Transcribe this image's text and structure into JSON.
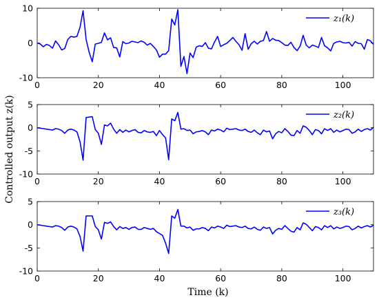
{
  "chart_data": [
    {
      "type": "line",
      "legend": "z₁(k)",
      "legend_placement": "top-right",
      "xlim": [
        0,
        110
      ],
      "ylim": [
        -10,
        10
      ],
      "xticks": [
        0,
        20,
        40,
        60,
        80,
        100
      ],
      "yticks": [
        -10,
        0,
        10
      ],
      "grid": false,
      "color": "#0000ff",
      "series": [
        {
          "x": [
            0,
            1,
            2,
            3,
            4,
            5,
            6,
            7,
            8,
            9,
            10,
            11,
            12,
            13,
            14,
            15,
            16,
            17,
            18,
            19,
            20,
            21,
            22,
            23,
            24,
            25,
            26,
            27,
            28,
            29,
            30,
            31,
            32,
            33,
            34,
            35,
            36,
            37,
            38,
            39,
            40,
            41,
            42,
            43,
            44,
            45,
            46,
            47,
            48,
            49,
            50,
            51,
            52,
            53,
            54,
            55,
            56,
            57,
            58,
            59,
            60,
            61,
            62,
            63,
            64,
            65,
            66,
            67,
            68,
            69,
            70,
            71,
            72,
            73,
            74,
            75,
            76,
            77,
            78,
            79,
            80,
            81,
            82,
            83,
            84,
            85,
            86,
            87,
            88,
            89,
            90,
            91,
            92,
            93,
            94,
            95,
            96,
            97,
            98,
            99,
            100,
            101,
            102,
            103,
            104,
            105,
            106,
            107,
            108,
            109,
            110
          ],
          "values": [
            0,
            -0.3,
            -1.1,
            -0.4,
            -0.7,
            -1.5,
            0.6,
            -0.5,
            -2,
            -1.6,
            1,
            1.9,
            1.7,
            1.9,
            4.5,
            9.3,
            1,
            -2.7,
            -5.4,
            -0.3,
            -0.1,
            0.2,
            2.9,
            0.9,
            1.5,
            -1.3,
            -1.4,
            -4,
            0.4,
            -0.2,
            0,
            0.5,
            0.3,
            0.1,
            0.6,
            0.2,
            -0.6,
            -0.1,
            -1,
            -2,
            -4.1,
            -3.2,
            -3.2,
            -2.2,
            6.9,
            5.2,
            9.6,
            -6.7,
            -3.9,
            -8.8,
            -2.9,
            -4.2,
            -1.2,
            -0.8,
            -1,
            0.1,
            -1.5,
            -1.7,
            0.3,
            1.9,
            -1,
            -0.5,
            -0.1,
            0.7,
            1.6,
            0.5,
            -0.5,
            -2.1,
            2.7,
            -1.8,
            -0.2,
            0.5,
            -0.3,
            0.5,
            0.7,
            3.3,
            0.5,
            1.3,
            0.8,
            0.7,
            0.1,
            -0.6,
            -0.7,
            0.2,
            -1.3,
            -2.2,
            -0.9,
            2.2,
            -0.6,
            -1.4,
            -0.6,
            -0.9,
            -1.3,
            1.6,
            -0.8,
            -1.4,
            -2.3,
            -0.1,
            0.3,
            0.5,
            0.1,
            0,
            0.2,
            -0.9,
            0.4,
            -0.1,
            -0.2,
            -1.8,
            1,
            0.6,
            -0.4
          ]
        }
      ]
    },
    {
      "type": "line",
      "legend": "z₂(k)",
      "legend_placement": "top-right",
      "xlim": [
        0,
        110
      ],
      "ylim": [
        -10,
        5
      ],
      "xticks": [
        0,
        20,
        40,
        60,
        80,
        100
      ],
      "yticks": [
        -10,
        -5,
        0,
        5
      ],
      "grid": false,
      "color": "#0000ff",
      "series": [
        {
          "x": [
            0,
            1,
            2,
            3,
            4,
            5,
            6,
            7,
            8,
            9,
            10,
            11,
            12,
            13,
            14,
            15,
            16,
            17,
            18,
            19,
            20,
            21,
            22,
            23,
            24,
            25,
            26,
            27,
            28,
            29,
            30,
            31,
            32,
            33,
            34,
            35,
            36,
            37,
            38,
            39,
            40,
            41,
            42,
            43,
            44,
            45,
            46,
            47,
            48,
            49,
            50,
            51,
            52,
            53,
            54,
            55,
            56,
            57,
            58,
            59,
            60,
            61,
            62,
            63,
            64,
            65,
            66,
            67,
            68,
            69,
            70,
            71,
            72,
            73,
            74,
            75,
            76,
            77,
            78,
            79,
            80,
            81,
            82,
            83,
            84,
            85,
            86,
            87,
            88,
            89,
            90,
            91,
            92,
            93,
            94,
            95,
            96,
            97,
            98,
            99,
            100,
            101,
            102,
            103,
            104,
            105,
            106,
            107,
            108,
            109,
            110
          ],
          "values": [
            0,
            -0.1,
            -0.2,
            -0.3,
            -0.4,
            -0.5,
            -0.2,
            -0.3,
            -0.6,
            -1.2,
            -0.5,
            -0.3,
            -0.5,
            -0.9,
            -3,
            -7,
            2.2,
            2.3,
            2.4,
            -0.4,
            -1.2,
            -3.6,
            0.6,
            0.4,
            1,
            -0.3,
            -1.2,
            -0.4,
            -1,
            -0.5,
            -0.9,
            -0.6,
            -0.4,
            -1,
            -1.1,
            -0.6,
            -0.9,
            -1,
            -0.8,
            -1.7,
            -0.6,
            -1.5,
            -2.2,
            -6.9,
            1.9,
            1.5,
            3.3,
            -0.3,
            -0.2,
            -0.6,
            -0.5,
            -1.3,
            -0.9,
            -0.8,
            -0.6,
            -0.9,
            -1.5,
            -0.5,
            -0.7,
            -0.3,
            -0.5,
            -0.9,
            -0.1,
            -0.4,
            -0.3,
            -0.2,
            -0.5,
            -0.6,
            -0.3,
            -0.8,
            -1,
            -0.5,
            -1.1,
            -1.5,
            -0.5,
            -0.9,
            -0.7,
            -2.4,
            -1.3,
            -0.8,
            -1.1,
            -0.2,
            -0.8,
            -1.6,
            -1.7,
            -0.6,
            -1.2,
            0.4,
            0.1,
            -0.6,
            -1.5,
            -0.4,
            -0.6,
            -1.3,
            -0.2,
            -0.6,
            -0.2,
            -1,
            -0.5,
            -0.9,
            -0.6,
            -0.3,
            -0.4,
            -1.2,
            -0.9,
            -0.3,
            -0.8,
            -0.4,
            -0.2,
            -0.5,
            0.1
          ]
        }
      ]
    },
    {
      "type": "line",
      "legend": "z₃(k)",
      "legend_placement": "top-right",
      "xlim": [
        0,
        110
      ],
      "ylim": [
        -10,
        5
      ],
      "xticks": [
        0,
        20,
        40,
        60,
        80,
        100
      ],
      "yticks": [
        -10,
        -5,
        0,
        5
      ],
      "grid": false,
      "color": "#0000ff",
      "series": [
        {
          "x": [
            0,
            1,
            2,
            3,
            4,
            5,
            6,
            7,
            8,
            9,
            10,
            11,
            12,
            13,
            14,
            15,
            16,
            17,
            18,
            19,
            20,
            21,
            22,
            23,
            24,
            25,
            26,
            27,
            28,
            29,
            30,
            31,
            32,
            33,
            34,
            35,
            36,
            37,
            38,
            39,
            40,
            41,
            42,
            43,
            44,
            45,
            46,
            47,
            48,
            49,
            50,
            51,
            52,
            53,
            54,
            55,
            56,
            57,
            58,
            59,
            60,
            61,
            62,
            63,
            64,
            65,
            66,
            67,
            68,
            69,
            70,
            71,
            72,
            73,
            74,
            75,
            76,
            77,
            78,
            79,
            80,
            81,
            82,
            83,
            84,
            85,
            86,
            87,
            88,
            89,
            90,
            91,
            92,
            93,
            94,
            95,
            96,
            97,
            98,
            99,
            100,
            101,
            102,
            103,
            104,
            105,
            106,
            107,
            108,
            109,
            110
          ],
          "values": [
            0,
            -0.1,
            -0.2,
            -0.3,
            -0.4,
            -0.5,
            -0.2,
            -0.3,
            -0.6,
            -1.2,
            -0.5,
            -0.3,
            -0.5,
            -0.9,
            -2.5,
            -5.7,
            1.9,
            1.9,
            1.9,
            -0.4,
            -1.1,
            -3.1,
            0.5,
            0.3,
            0.6,
            -0.4,
            -1.1,
            -0.4,
            -0.8,
            -0.6,
            -1,
            -0.6,
            -0.5,
            -1,
            -1,
            -0.6,
            -0.8,
            -1,
            -0.8,
            -1.5,
            -1.9,
            -2.3,
            -4,
            -6.2,
            1.9,
            1.4,
            3.3,
            -0.3,
            -0.3,
            -0.7,
            -0.5,
            -1.2,
            -0.9,
            -0.9,
            -0.6,
            -0.8,
            -1.3,
            -0.5,
            -0.7,
            -0.3,
            -0.5,
            -0.8,
            -0.1,
            -0.4,
            -0.3,
            -0.2,
            -0.5,
            -0.6,
            -0.3,
            -0.8,
            -0.9,
            -0.5,
            -1,
            -1.2,
            -0.5,
            -0.8,
            -0.6,
            -2,
            -1.2,
            -0.8,
            -1,
            -0.2,
            -0.8,
            -1.4,
            -1.6,
            -0.6,
            -1.1,
            0.4,
            0.1,
            -0.6,
            -1.3,
            -0.4,
            -0.6,
            -1.1,
            -0.2,
            -0.6,
            -0.2,
            -0.9,
            -0.5,
            -0.8,
            -0.6,
            -0.3,
            -0.4,
            -1.1,
            -0.8,
            -0.3,
            -0.7,
            -0.4,
            -0.2,
            -0.5,
            -0.1
          ]
        }
      ]
    }
  ],
  "shared": {
    "xlabel": "Time (k)",
    "ylabel": "Controlled output z(k)"
  }
}
